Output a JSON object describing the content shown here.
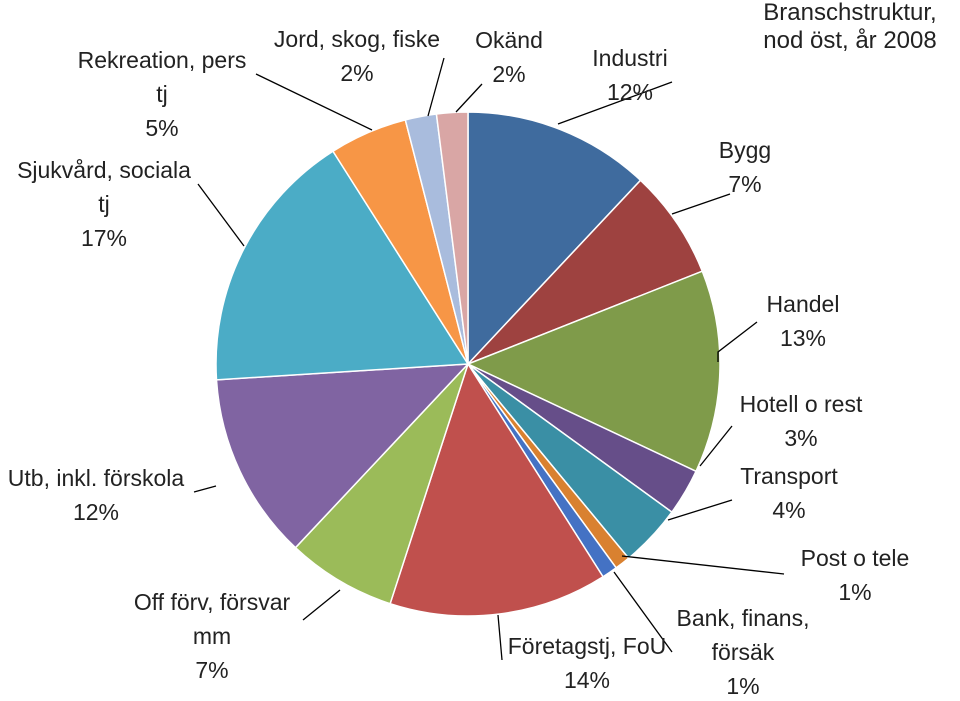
{
  "chart_data": {
    "type": "pie",
    "title_lines": [
      "Branschstruktur,",
      "nod öst, år 2008"
    ],
    "legend": "none",
    "slices": [
      {
        "name_lines": [
          "Industri"
        ],
        "value_label": "12%",
        "value": 12,
        "color": "#3F6B9E"
      },
      {
        "name_lines": [
          "Bygg"
        ],
        "value_label": "7%",
        "value": 7,
        "color": "#9E4240"
      },
      {
        "name_lines": [
          "Handel"
        ],
        "value_label": "13%",
        "value": 13,
        "color": "#7F9B4A"
      },
      {
        "name_lines": [
          "Hotell o rest"
        ],
        "value_label": "3%",
        "value": 3,
        "color": "#664E89"
      },
      {
        "name_lines": [
          "Transport"
        ],
        "value_label": "4%",
        "value": 4,
        "color": "#3A8FA5"
      },
      {
        "name_lines": [
          "Post o tele"
        ],
        "value_label": "1%",
        "value": 1,
        "color": "#D98130"
      },
      {
        "name_lines": [
          "Bank, finans,",
          "försäk"
        ],
        "value_label": "1%",
        "value": 1,
        "color": "#4472C4"
      },
      {
        "name_lines": [
          "Företagstj, FoU"
        ],
        "value_label": "14%",
        "value": 14,
        "color": "#C0504D"
      },
      {
        "name_lines": [
          "Off förv, försvar",
          "mm"
        ],
        "value_label": "7%",
        "value": 7,
        "color": "#9BBB59"
      },
      {
        "name_lines": [
          "Utb, inkl. förskola"
        ],
        "value_label": "12%",
        "value": 12,
        "color": "#8064A2"
      },
      {
        "name_lines": [
          "Sjukvård, sociala",
          "tj"
        ],
        "value_label": "17%",
        "value": 17,
        "color": "#4BACC6"
      },
      {
        "name_lines": [
          "Rekreation, pers",
          "tj"
        ],
        "value_label": "5%",
        "value": 5,
        "color": "#F79646"
      },
      {
        "name_lines": [
          "Jord, skog, fiske"
        ],
        "value_label": "2%",
        "value": 2,
        "color": "#A9BCDD"
      },
      {
        "name_lines": [
          "Okänd"
        ],
        "value_label": "2%",
        "value": 2,
        "color": "#D9A6A5"
      }
    ]
  }
}
